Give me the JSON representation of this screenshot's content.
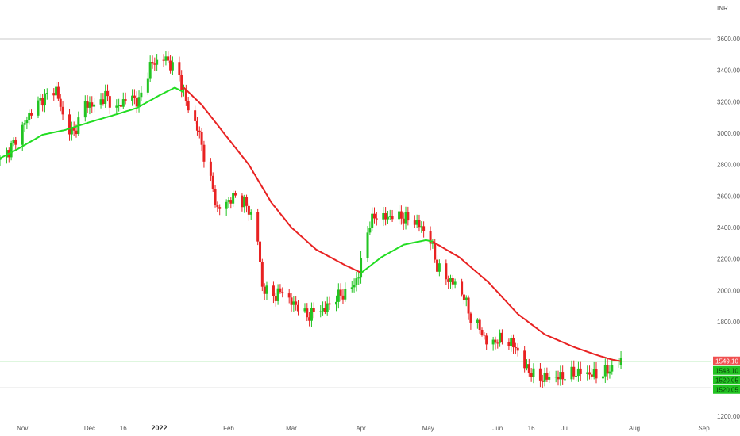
{
  "chart_data": {
    "type": "candlestick",
    "currency_label": "INR",
    "ylim": [
      1200,
      3800
    ],
    "y_ticks": [
      {
        "value": 3600,
        "label": "3600.00"
      },
      {
        "value": 3400,
        "label": "3400.00"
      },
      {
        "value": 3200,
        "label": "3200.00"
      },
      {
        "value": 3000,
        "label": "3000.00"
      },
      {
        "value": 2800,
        "label": "2800.00"
      },
      {
        "value": 2600,
        "label": "2600.00"
      },
      {
        "value": 2400,
        "label": "2400.00"
      },
      {
        "value": 2200,
        "label": "2200.00"
      },
      {
        "value": 2000,
        "label": "2000.00"
      },
      {
        "value": 1800,
        "label": "1800.00"
      },
      {
        "value": 1200,
        "label": "1200.00"
      }
    ],
    "x_ticks": [
      {
        "date": "2021-11-01",
        "label": "Nov",
        "bold": false
      },
      {
        "date": "2021-12-01",
        "label": "Dec",
        "bold": false
      },
      {
        "date": "2021-12-16",
        "label": "16",
        "bold": false
      },
      {
        "date": "2022-01-01",
        "label": "2022",
        "bold": true
      },
      {
        "date": "2022-02-01",
        "label": "Feb",
        "bold": false
      },
      {
        "date": "2022-03-01",
        "label": "Mar",
        "bold": false
      },
      {
        "date": "2022-04-01",
        "label": "Apr",
        "bold": false
      },
      {
        "date": "2022-05-01",
        "label": "May",
        "bold": false
      },
      {
        "date": "2022-06-01",
        "label": "Jun",
        "bold": false
      },
      {
        "date": "2022-06-16",
        "label": "16",
        "bold": false
      },
      {
        "date": "2022-07-01",
        "label": "Jul",
        "bold": false
      },
      {
        "date": "2022-08-01",
        "label": "Aug",
        "bold": false
      },
      {
        "date": "2022-09-01",
        "label": "Sep",
        "bold": false
      }
    ],
    "x_range": [
      "2021-10-22",
      "2022-09-04"
    ],
    "close_anchors": [
      [
        "2021-10-22",
        2830
      ],
      [
        "2021-10-26",
        2890
      ],
      [
        "2021-10-29",
        2960
      ],
      [
        "2021-11-05",
        3140
      ],
      [
        "2021-11-10",
        3220
      ],
      [
        "2021-11-16",
        3280
      ],
      [
        "2021-11-20",
        3050
      ],
      [
        "2021-11-24",
        3000
      ],
      [
        "2021-11-29",
        3190
      ],
      [
        "2021-12-04",
        3170
      ],
      [
        "2021-12-08",
        3240
      ],
      [
        "2021-12-13",
        3150
      ],
      [
        "2021-12-18",
        3240
      ],
      [
        "2021-12-23",
        3200
      ],
      [
        "2021-12-28",
        3430
      ],
      [
        "2022-01-03",
        3480
      ],
      [
        "2022-01-06",
        3440
      ],
      [
        "2022-01-10",
        3360
      ],
      [
        "2022-01-14",
        3150
      ],
      [
        "2022-01-18",
        3040
      ],
      [
        "2022-01-21",
        2860
      ],
      [
        "2022-01-25",
        2640
      ],
      [
        "2022-01-27",
        2510
      ],
      [
        "2022-01-31",
        2560
      ],
      [
        "2022-02-04",
        2600
      ],
      [
        "2022-02-08",
        2560
      ],
      [
        "2022-02-11",
        2480
      ],
      [
        "2022-02-14",
        2320
      ],
      [
        "2022-02-16",
        2020
      ],
      [
        "2022-02-21",
        1960
      ],
      [
        "2022-02-25",
        2000
      ],
      [
        "2022-03-01",
        1920
      ],
      [
        "2022-03-04",
        1900
      ],
      [
        "2022-03-08",
        1830
      ],
      [
        "2022-03-12",
        1880
      ],
      [
        "2022-03-16",
        1880
      ],
      [
        "2022-03-21",
        1960
      ],
      [
        "2022-03-25",
        1980
      ],
      [
        "2022-03-29",
        2040
      ],
      [
        "2022-03-31",
        2100
      ],
      [
        "2022-04-02",
        2260
      ],
      [
        "2022-04-05",
        2430
      ],
      [
        "2022-04-08",
        2480
      ],
      [
        "2022-04-12",
        2460
      ],
      [
        "2022-04-16",
        2480
      ],
      [
        "2022-04-20",
        2460
      ],
      [
        "2022-04-25",
        2440
      ],
      [
        "2022-04-28",
        2400
      ],
      [
        "2022-05-02",
        2320
      ],
      [
        "2022-05-05",
        2150
      ],
      [
        "2022-05-09",
        2080
      ],
      [
        "2022-05-13",
        2040
      ],
      [
        "2022-05-17",
        1960
      ],
      [
        "2022-05-20",
        1820
      ],
      [
        "2022-05-24",
        1760
      ],
      [
        "2022-05-28",
        1640
      ],
      [
        "2022-06-01",
        1690
      ],
      [
        "2022-06-05",
        1680
      ],
      [
        "2022-06-09",
        1640
      ],
      [
        "2022-06-13",
        1520
      ],
      [
        "2022-06-17",
        1460
      ],
      [
        "2022-06-21",
        1440
      ],
      [
        "2022-06-25",
        1450
      ],
      [
        "2022-06-29",
        1450
      ],
      [
        "2022-07-04",
        1470
      ],
      [
        "2022-07-08",
        1480
      ],
      [
        "2022-07-12",
        1470
      ],
      [
        "2022-07-16",
        1460
      ],
      [
        "2022-07-20",
        1490
      ],
      [
        "2022-07-24",
        1520
      ],
      [
        "2022-07-26",
        1560
      ]
    ],
    "ema_fast_anchors": [
      [
        "2021-10-22",
        2840
      ],
      [
        "2021-10-30",
        2900
      ],
      [
        "2021-11-10",
        2990
      ],
      [
        "2021-11-20",
        3020
      ],
      [
        "2021-12-01",
        3070
      ],
      [
        "2021-12-13",
        3120
      ],
      [
        "2021-12-22",
        3160
      ],
      [
        "2022-01-01",
        3240
      ],
      [
        "2022-01-08",
        3290
      ],
      [
        "2022-01-12",
        3260
      ]
    ],
    "ema_slow_anchors": [
      [
        "2022-01-12",
        3290
      ],
      [
        "2022-01-20",
        3180
      ],
      [
        "2022-01-31",
        2980
      ],
      [
        "2022-02-10",
        2800
      ],
      [
        "2022-02-20",
        2560
      ],
      [
        "2022-03-01",
        2400
      ],
      [
        "2022-03-12",
        2260
      ],
      [
        "2022-03-25",
        2160
      ],
      [
        "2022-03-31",
        2120
      ],
      [
        "2022-04-01",
        2110
      ]
    ],
    "ema_fast2_anchors": [
      [
        "2022-04-01",
        2110
      ],
      [
        "2022-04-10",
        2210
      ],
      [
        "2022-04-20",
        2290
      ],
      [
        "2022-04-30",
        2320
      ],
      [
        "2022-05-03",
        2310
      ]
    ],
    "ema_slow2_anchors": [
      [
        "2022-05-03",
        2310
      ],
      [
        "2022-05-15",
        2210
      ],
      [
        "2022-05-28",
        2050
      ],
      [
        "2022-06-10",
        1850
      ],
      [
        "2022-06-22",
        1720
      ],
      [
        "2022-07-05",
        1640
      ],
      [
        "2022-07-15",
        1590
      ],
      [
        "2022-07-22",
        1560
      ],
      [
        "2022-07-26",
        1549
      ]
    ],
    "reference_lines": [
      {
        "value": 3600,
        "color": "#c8c8c8"
      },
      {
        "value": 1549,
        "color": "#7ddc7d"
      },
      {
        "value": 1380,
        "color": "#c8c8c8"
      }
    ],
    "price_tags": [
      {
        "value": 1549.1,
        "label": "1549.10",
        "color": "#f05050"
      },
      {
        "value": 1543.1,
        "label": "1543.10",
        "color": "#22c422"
      },
      {
        "value": 1520.05,
        "label": "1520.05",
        "color": "#22c422"
      },
      {
        "value": 1520.05,
        "label": "1520.05",
        "color": "#22c422"
      }
    ],
    "colors": {
      "up": "#22c422",
      "down": "#e82222",
      "ema_fast": "#22dd22",
      "ema_slow": "#e82222",
      "axis_text": "#555555"
    }
  }
}
